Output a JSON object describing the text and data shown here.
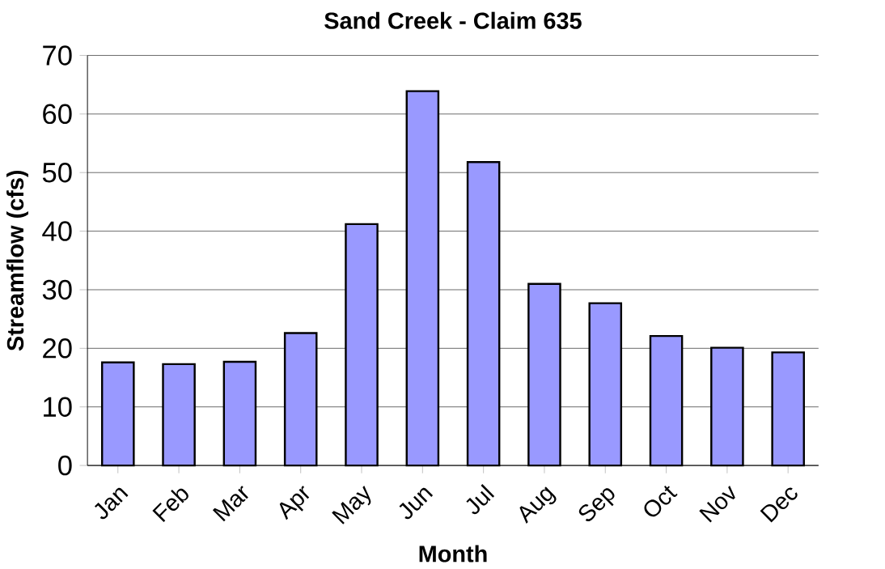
{
  "chart_data": {
    "type": "bar",
    "title": "Sand Creek - Claim 635",
    "xlabel": "Month",
    "ylabel": "Streamflow (cfs)",
    "categories": [
      "Jan",
      "Feb",
      "Mar",
      "Apr",
      "May",
      "Jun",
      "Jul",
      "Aug",
      "Sep",
      "Oct",
      "Nov",
      "Dec"
    ],
    "values": [
      17.6,
      17.3,
      17.7,
      22.6,
      41.2,
      63.9,
      51.8,
      31.0,
      27.7,
      22.1,
      20.1,
      19.3
    ],
    "color": "#9999ff",
    "ylim": [
      0,
      70
    ],
    "yticks": [
      0,
      10,
      20,
      30,
      40,
      50,
      60,
      70
    ],
    "grid": "y"
  }
}
